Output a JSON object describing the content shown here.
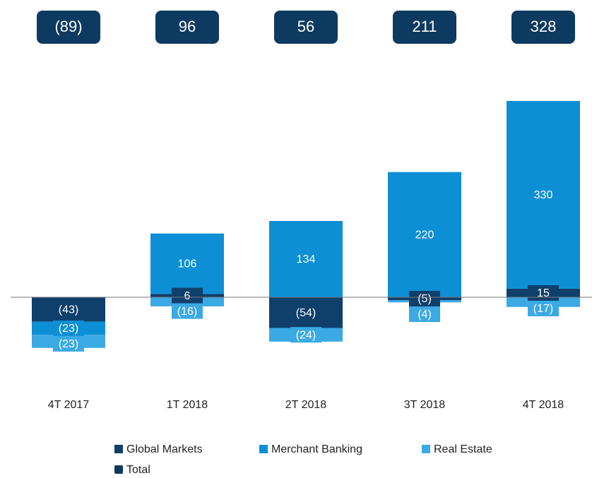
{
  "chart_data": {
    "type": "stacked_bar",
    "categories": [
      "4T 2017",
      "1T 2018",
      "2T 2018",
      "3T 2018",
      "4T 2018"
    ],
    "series": [
      {
        "name": "Global Markets",
        "color": "#0f3f6b",
        "values": [
          -43,
          6,
          -54,
          -5,
          15
        ],
        "value_labels": [
          "(43)",
          "6",
          "(54)",
          "(5)",
          "15"
        ]
      },
      {
        "name": "Merchant Banking",
        "color": "#0d8fd5",
        "values": [
          -23,
          106,
          134,
          220,
          330
        ],
        "value_labels": [
          "(23)",
          "106",
          "134",
          "220",
          "330"
        ]
      },
      {
        "name": "Real Estate",
        "color": "#3aa9e4",
        "values": [
          -23,
          -16,
          -24,
          -4,
          -17
        ],
        "value_labels": [
          "(23)",
          "(16)",
          "(24)",
          "(4)",
          "(17)"
        ]
      }
    ],
    "total": {
      "name": "Total",
      "color": "#0d3a60",
      "values": [
        -89,
        96,
        56,
        211,
        328
      ],
      "value_labels": [
        "(89)",
        "96",
        "56",
        "211",
        "328"
      ]
    }
  }
}
